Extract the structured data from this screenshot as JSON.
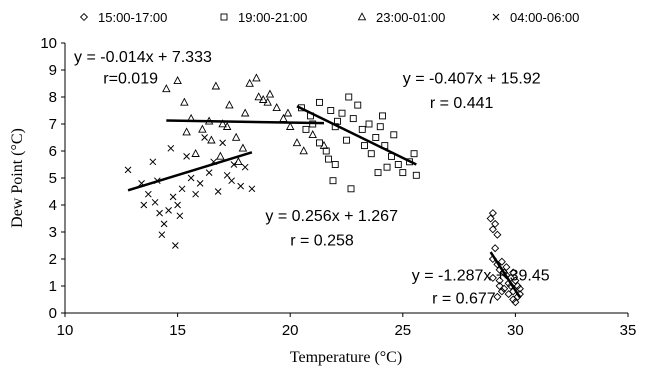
{
  "chart_data": {
    "type": "scatter",
    "xlabel": "Temperature (°C)",
    "ylabel": "Dew Point (°C)",
    "xlim": [
      10,
      35
    ],
    "ylim": [
      0,
      10
    ],
    "xticks": [
      10,
      15,
      20,
      25,
      30,
      35
    ],
    "yticks": [
      0,
      1,
      2,
      3,
      4,
      5,
      6,
      7,
      8,
      9,
      10
    ],
    "grid": "none",
    "legend_position": "top",
    "series": [
      {
        "name": "15:00-17:00",
        "marker": "diamond",
        "points": [
          [
            28.9,
            3.5
          ],
          [
            29.0,
            3.7
          ],
          [
            29.1,
            3.3
          ],
          [
            29.0,
            3.1
          ],
          [
            29.2,
            2.9
          ],
          [
            29.1,
            2.4
          ],
          [
            29.0,
            2.0
          ],
          [
            29.2,
            1.8
          ],
          [
            29.3,
            1.6
          ],
          [
            29.4,
            1.9
          ],
          [
            29.5,
            1.5
          ],
          [
            29.3,
            1.2
          ],
          [
            29.6,
            1.4
          ],
          [
            29.7,
            1.1
          ],
          [
            29.5,
            0.9
          ],
          [
            29.8,
            1.0
          ],
          [
            29.9,
            0.8
          ],
          [
            30.0,
            1.2
          ],
          [
            30.1,
            0.6
          ],
          [
            29.9,
            0.5
          ],
          [
            30.0,
            0.4
          ],
          [
            30.2,
            0.7
          ],
          [
            29.7,
            0.7
          ],
          [
            29.4,
            0.8
          ],
          [
            29.2,
            0.6
          ],
          [
            29.6,
            1.7
          ],
          [
            29.8,
            1.3
          ],
          [
            30.1,
            1.0
          ],
          [
            29.3,
            1.0
          ],
          [
            29.0,
            1.3
          ],
          [
            29.9,
            1.5
          ],
          [
            30.2,
            0.9
          ]
        ]
      },
      {
        "name": "19:00-21:00",
        "marker": "square",
        "points": [
          [
            20.5,
            7.6
          ],
          [
            20.9,
            7.3
          ],
          [
            21.3,
            7.8
          ],
          [
            21.8,
            7.5
          ],
          [
            22.0,
            6.9
          ],
          [
            22.3,
            7.4
          ],
          [
            22.6,
            8.0
          ],
          [
            22.8,
            7.2
          ],
          [
            23.0,
            7.7
          ],
          [
            23.2,
            6.8
          ],
          [
            23.5,
            7.0
          ],
          [
            23.8,
            6.5
          ],
          [
            24.0,
            6.9
          ],
          [
            24.2,
            6.2
          ],
          [
            24.5,
            5.8
          ],
          [
            24.8,
            5.5
          ],
          [
            25.0,
            5.2
          ],
          [
            25.3,
            5.6
          ],
          [
            25.6,
            5.1
          ],
          [
            24.3,
            5.4
          ],
          [
            23.6,
            5.9
          ],
          [
            22.0,
            5.5
          ],
          [
            21.7,
            5.7
          ],
          [
            22.7,
            4.6
          ],
          [
            21.3,
            6.3
          ],
          [
            21.0,
            7.0
          ],
          [
            22.1,
            7.1
          ],
          [
            23.3,
            6.2
          ],
          [
            24.6,
            6.6
          ],
          [
            25.5,
            5.9
          ],
          [
            21.6,
            6.0
          ],
          [
            23.9,
            5.2
          ],
          [
            20.7,
            6.8
          ],
          [
            22.5,
            6.4
          ],
          [
            24.1,
            7.3
          ],
          [
            21.9,
            4.9
          ]
        ]
      },
      {
        "name": "23:00-01:00",
        "marker": "triangle",
        "points": [
          [
            14.5,
            8.3
          ],
          [
            15.0,
            8.6
          ],
          [
            15.3,
            7.8
          ],
          [
            15.6,
            7.2
          ],
          [
            16.1,
            6.8
          ],
          [
            16.4,
            7.1
          ],
          [
            16.7,
            8.4
          ],
          [
            17.0,
            7.0
          ],
          [
            17.3,
            7.7
          ],
          [
            17.6,
            6.5
          ],
          [
            17.9,
            6.1
          ],
          [
            18.2,
            8.5
          ],
          [
            18.5,
            8.7
          ],
          [
            18.8,
            7.9
          ],
          [
            19.1,
            8.1
          ],
          [
            19.4,
            7.6
          ],
          [
            19.7,
            7.2
          ],
          [
            20.0,
            6.9
          ],
          [
            20.3,
            6.3
          ],
          [
            20.6,
            6.0
          ],
          [
            21.0,
            6.6
          ],
          [
            21.5,
            6.2
          ],
          [
            18.0,
            7.4
          ],
          [
            16.5,
            6.4
          ],
          [
            15.8,
            5.9
          ],
          [
            17.7,
            5.6
          ],
          [
            19.0,
            7.8
          ],
          [
            19.9,
            7.4
          ],
          [
            18.6,
            8.0
          ],
          [
            16.9,
            5.8
          ],
          [
            15.4,
            6.7
          ],
          [
            17.2,
            6.9
          ]
        ]
      },
      {
        "name": "04:00-06:00",
        "marker": "x",
        "points": [
          [
            12.8,
            5.3
          ],
          [
            13.4,
            4.8
          ],
          [
            13.7,
            4.4
          ],
          [
            14.0,
            4.1
          ],
          [
            14.2,
            3.7
          ],
          [
            14.4,
            3.3
          ],
          [
            14.3,
            2.9
          ],
          [
            14.9,
            2.5
          ],
          [
            14.6,
            3.8
          ],
          [
            15.0,
            4.0
          ],
          [
            15.2,
            4.6
          ],
          [
            15.6,
            5.0
          ],
          [
            16.0,
            4.8
          ],
          [
            16.4,
            5.2
          ],
          [
            16.8,
            4.5
          ],
          [
            17.2,
            5.1
          ],
          [
            17.5,
            5.5
          ],
          [
            17.8,
            4.7
          ],
          [
            18.3,
            4.6
          ],
          [
            13.9,
            5.6
          ],
          [
            14.7,
            6.1
          ],
          [
            15.4,
            5.8
          ],
          [
            16.2,
            6.5
          ],
          [
            17.0,
            6.3
          ],
          [
            15.8,
            4.4
          ],
          [
            14.1,
            4.9
          ],
          [
            13.5,
            4.0
          ],
          [
            16.6,
            5.6
          ],
          [
            17.4,
            4.9
          ],
          [
            15.1,
            3.6
          ],
          [
            14.8,
            4.3
          ],
          [
            18.0,
            5.4
          ]
        ]
      }
    ],
    "trendlines": [
      {
        "x": [
          12.8,
          18.3
        ],
        "slope": 0.256,
        "intercept": 1.267
      },
      {
        "x": [
          14.5,
          21.5
        ],
        "slope": -0.014,
        "intercept": 7.333
      },
      {
        "x": [
          20.3,
          25.6
        ],
        "slope": -0.407,
        "intercept": 15.92
      },
      {
        "x": [
          28.9,
          30.2
        ],
        "slope": -1.287,
        "intercept": 39.45
      }
    ],
    "annotations": [
      {
        "text": "y = -0.014x + 7.333",
        "x": 10.4,
        "y": 9.3
      },
      {
        "text": "r=0.019",
        "x": 11.7,
        "y": 8.5
      },
      {
        "text": "y = -0.407x + 15.92",
        "x": 25.0,
        "y": 8.5
      },
      {
        "text": "r = 0.441",
        "x": 26.2,
        "y": 7.6
      },
      {
        "text": "y = 0.256x + 1.267",
        "x": 18.9,
        "y": 3.4
      },
      {
        "text": "r = 0.258",
        "x": 20.0,
        "y": 2.5
      },
      {
        "text": "y = -1.287x + 39.45",
        "x": 25.4,
        "y": 1.2
      },
      {
        "text": "r = 0.677",
        "x": 26.3,
        "y": 0.35
      }
    ]
  }
}
